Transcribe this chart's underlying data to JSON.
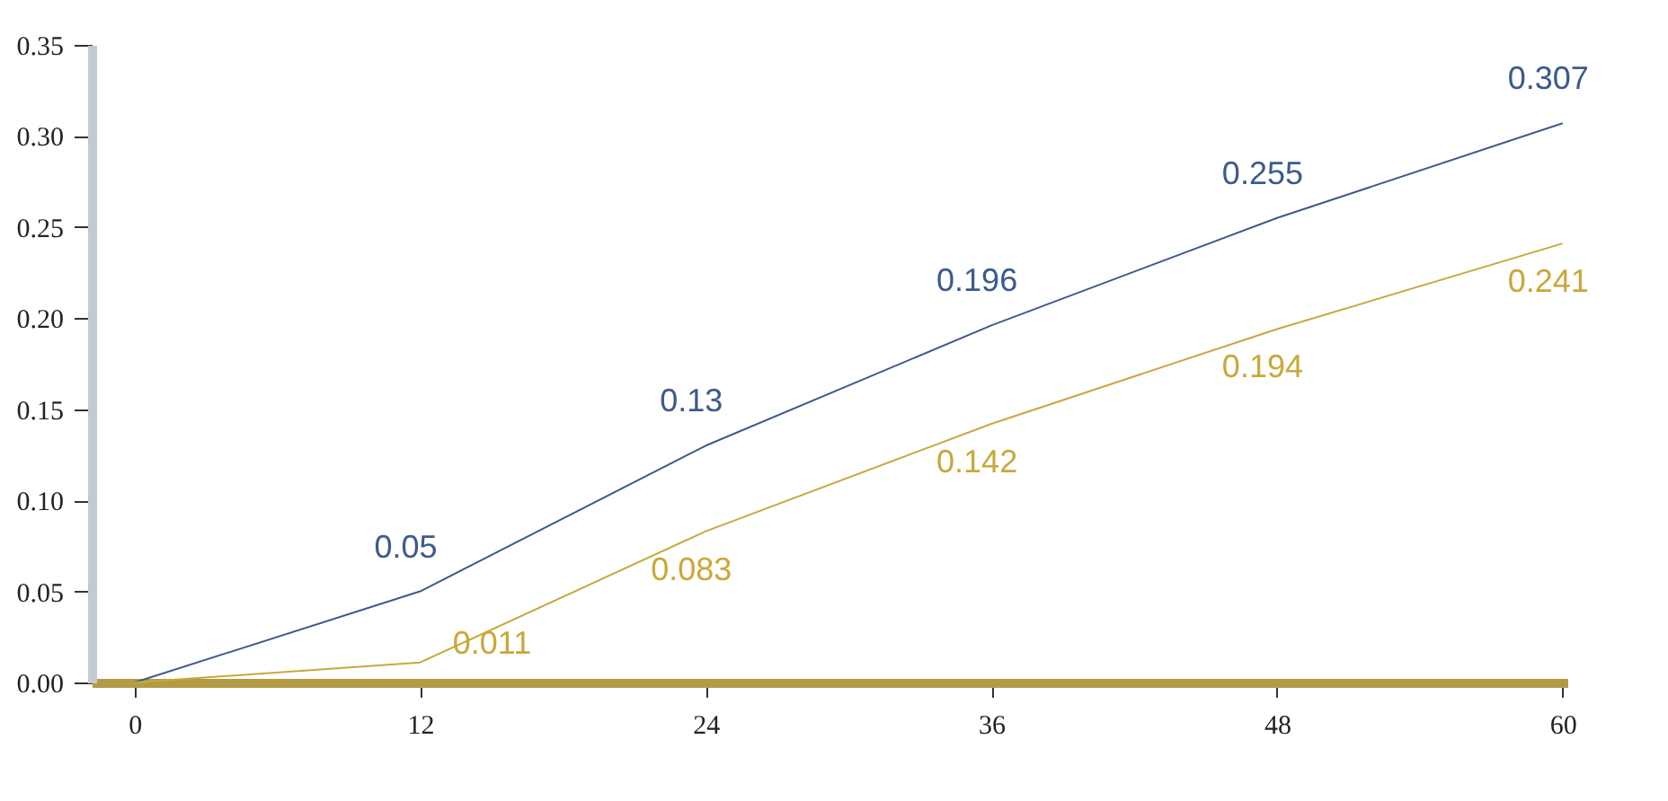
{
  "chart_data": {
    "type": "line",
    "x": [
      0,
      12,
      24,
      36,
      48,
      60
    ],
    "series": [
      {
        "color": "#3d5a8c",
        "values": [
          0,
          0.05,
          0.13,
          0.196,
          0.255,
          0.307
        ],
        "value_labels": [
          null,
          "0.05",
          "0.13",
          "0.196",
          "0.255",
          "0.307"
        ]
      },
      {
        "color": "#c9a83a",
        "values": [
          0,
          0.011,
          0.083,
          0.142,
          0.194,
          0.241
        ],
        "value_labels": [
          null,
          "0.011",
          "0.083",
          "0.142",
          "0.194",
          "0.241"
        ]
      }
    ],
    "xlim": [
      -1.8,
      60.2
    ],
    "xticks": [
      0,
      12,
      24,
      36,
      48,
      60
    ],
    "ylim": [
      0,
      0.35
    ],
    "yticks": [
      {
        "value": 0,
        "label": "0.00"
      },
      0.05,
      {
        "value": 0.1,
        "label": "0.10"
      },
      0.15,
      {
        "value": 0.2,
        "label": "0.20"
      },
      0.25,
      {
        "value": 0.3,
        "label": "0.30"
      },
      0.35
    ],
    "grid": false,
    "legend": false,
    "marker": "none",
    "line_style": "solid"
  }
}
